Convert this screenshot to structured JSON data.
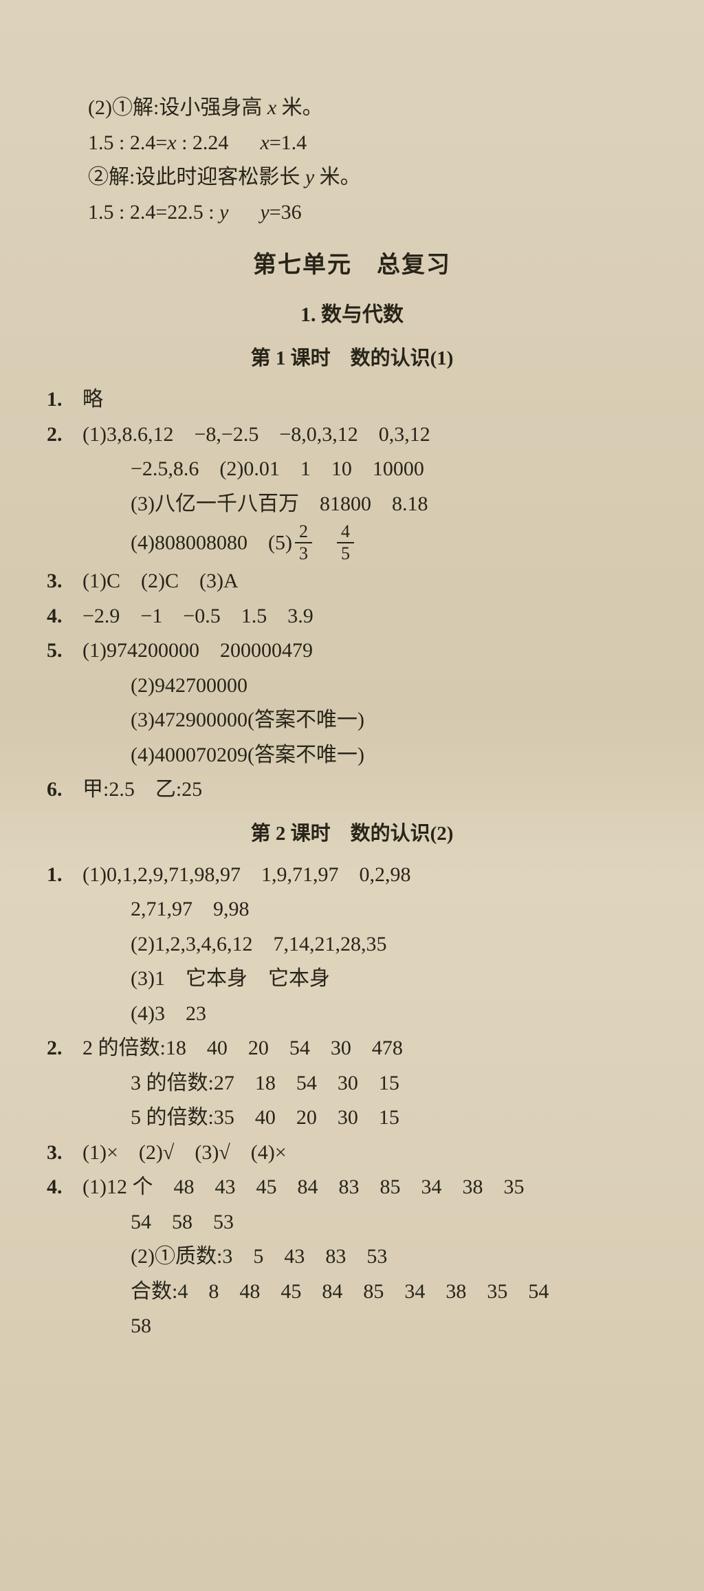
{
  "colors": {
    "bg": "#d9ceb5",
    "text": "#282419"
  },
  "typography": {
    "body_fontsize": 30,
    "unit_title_fontsize": 34,
    "line_height": 1.55,
    "font_family": "SimSun / Songti"
  },
  "intro": {
    "l1_a": "(2)①解:设小强身高 ",
    "var_x": "x",
    "l1_b": " 米。",
    "l2a": "1.5 : 2.4=",
    "l2b": " : 2.24",
    "l2c": "=1.4",
    "l3_a": "②解:设此时迎客松影长 ",
    "var_y": "y",
    "l3_b": " 米。",
    "l4a": "1.5 : 2.4=22.5 : ",
    "l4b": "=36"
  },
  "unit_title": "第七单元　总复习",
  "section1_title": "1. 数与代数",
  "lesson1_title": "第 1 课时　数的认识(1)",
  "L1": {
    "q1": "略",
    "q2_l1": "(1)3,8.6,12　−8,−2.5　−8,0,3,12　0,3,12",
    "q2_l2": "−2.5,8.6　(2)0.01　1　10　10000",
    "q2_l3": "(3)八亿一千八百万　81800　8.18",
    "q2_l4a": "(4)808008080　(5)",
    "frac1_n": "2",
    "frac1_d": "3",
    "frac2_n": "4",
    "frac2_d": "5",
    "q3": "(1)C　(2)C　(3)A",
    "q4": "−2.9　−1　−0.5　1.5　3.9",
    "q5_l1": "(1)974200000　200000479",
    "q5_l2": "(2)942700000",
    "q5_l3": "(3)472900000(答案不唯一)",
    "q5_l4": "(4)400070209(答案不唯一)",
    "q6": "甲:2.5　乙:25"
  },
  "lesson2_title": "第 2 课时　数的认识(2)",
  "L2": {
    "q1_l1": "(1)0,1,2,9,71,98,97　1,9,71,97　0,2,98",
    "q1_l2": "2,71,97　9,98",
    "q1_l3": "(2)1,2,3,4,6,12　7,14,21,28,35",
    "q1_l4": "(3)1　它本身　它本身",
    "q1_l5": "(4)3　23",
    "q2_l1": "2 的倍数:18　40　20　54　30　478",
    "q2_l2": "3 的倍数:27　18　54　30　15",
    "q2_l3": "5 的倍数:35　40　20　30　15",
    "q3": "(1)×　(2)√　(3)√　(4)×",
    "q4_l1": "(1)12 个　48　43　45　84　83　85　34　38　35",
    "q4_l2": "54　58　53",
    "q4_l3": "(2)①质数:3　5　43　83　53",
    "q4_l4": "合数:4　8　48　45　84　85　34　38　35　54",
    "q4_l5": "58"
  },
  "labels": {
    "n1": "1.",
    "n2": "2.",
    "n3": "3.",
    "n4": "4.",
    "n5": "5.",
    "n6": "6."
  }
}
